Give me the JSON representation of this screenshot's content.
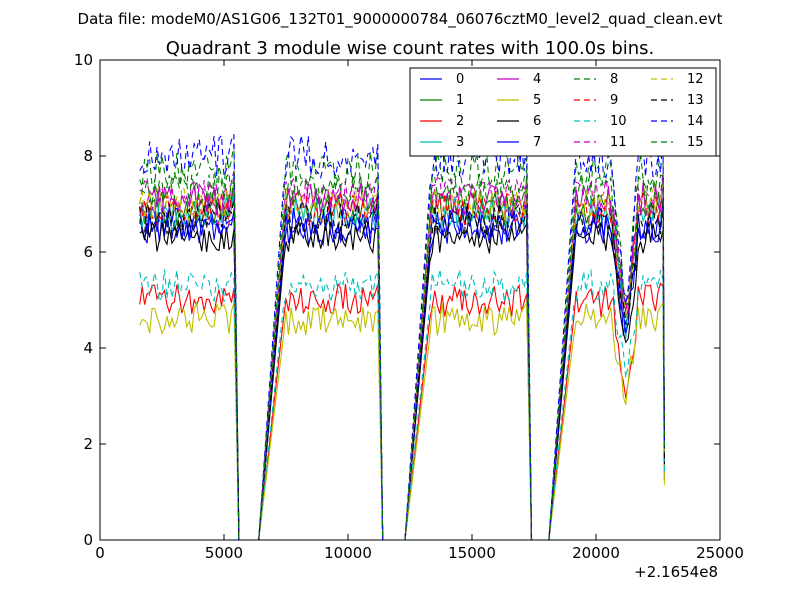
{
  "suptitle": "Data file: modeM0/AS1G06_132T01_9000000784_06076cztM0_level2_quad_clean.evt",
  "chart_data": {
    "type": "line",
    "title": "Quadrant 3 module wise count rates with 100.0s bins.",
    "xlabel": "",
    "ylabel": "",
    "xlim": [
      0,
      25000
    ],
    "ylim": [
      0,
      10
    ],
    "x_ticks": [
      "0",
      "5000",
      "10000",
      "15000",
      "20000",
      "25000"
    ],
    "y_ticks": [
      "0",
      "2",
      "4",
      "6",
      "8",
      "10"
    ],
    "x_offset_label": "+2.1654e8",
    "grid": false,
    "legend_position": "top-right",
    "gti_segments": [
      [
        1600,
        5400
      ],
      [
        7400,
        11200
      ],
      [
        13300,
        17200
      ],
      [
        19100,
        22700
      ]
    ],
    "series": [
      {
        "name": "0",
        "color": "#0000ff",
        "style": "solid",
        "level": 6.5,
        "amp": 0.35
      },
      {
        "name": "1",
        "color": "#008000",
        "style": "solid",
        "level": 6.9,
        "amp": 0.35
      },
      {
        "name": "2",
        "color": "#ff0000",
        "style": "solid",
        "level": 5.0,
        "amp": 0.35
      },
      {
        "name": "3",
        "color": "#00bfbf",
        "style": "solid",
        "level": 6.8,
        "amp": 0.35
      },
      {
        "name": "4",
        "color": "#bf00bf",
        "style": "solid",
        "level": 7.1,
        "amp": 0.35
      },
      {
        "name": "5",
        "color": "#bfbf00",
        "style": "solid",
        "level": 4.6,
        "amp": 0.35
      },
      {
        "name": "6",
        "color": "#000000",
        "style": "solid",
        "level": 6.3,
        "amp": 0.35
      },
      {
        "name": "7",
        "color": "#0000ff",
        "style": "solid",
        "level": 6.6,
        "amp": 0.35
      },
      {
        "name": "8",
        "color": "#008000",
        "style": "dashed",
        "level": 7.7,
        "amp": 0.4
      },
      {
        "name": "9",
        "color": "#ff0000",
        "style": "dashed",
        "level": 6.9,
        "amp": 0.35
      },
      {
        "name": "10",
        "color": "#00bfbf",
        "style": "dashed",
        "level": 5.3,
        "amp": 0.35
      },
      {
        "name": "11",
        "color": "#bf00bf",
        "style": "dashed",
        "level": 7.2,
        "amp": 0.35
      },
      {
        "name": "12",
        "color": "#bfbf00",
        "style": "dashed",
        "level": 7.0,
        "amp": 0.35
      },
      {
        "name": "13",
        "color": "#000000",
        "style": "dashed",
        "level": 6.7,
        "amp": 0.35
      },
      {
        "name": "14",
        "color": "#0000ff",
        "style": "dashed",
        "level": 8.0,
        "amp": 0.45
      },
      {
        "name": "15",
        "color": "#008000",
        "style": "dashed",
        "level": 7.3,
        "amp": 0.35
      }
    ]
  }
}
